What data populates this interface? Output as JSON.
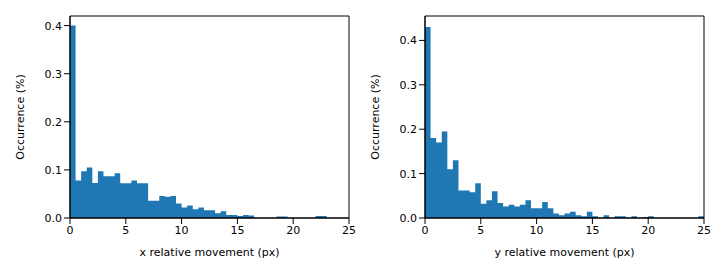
{
  "chart_data": [
    {
      "type": "histogram",
      "xlabel": "x relative movement (px)",
      "ylabel": "Occurrence (%)",
      "color": "#1f77b4",
      "xlim": [
        0,
        25
      ],
      "ylim": [
        0,
        0.42
      ],
      "xticks": [
        0,
        5,
        10,
        15,
        20,
        25
      ],
      "yticks": [
        {
          "value": 0,
          "label": "0.0"
        },
        {
          "value": 0.1,
          "label": "0.1"
        },
        {
          "value": 0.2,
          "label": "0.2"
        },
        {
          "value": 0.3,
          "label": "0.3"
        },
        {
          "value": 0.4,
          "label": "0.4"
        }
      ],
      "bins": [
        0,
        0.5,
        1,
        1.5,
        2,
        2.5,
        3,
        3.5,
        4,
        4.5,
        5,
        5.5,
        6,
        6.5,
        7,
        7.5,
        8,
        8.5,
        9,
        9.5,
        10,
        10.5,
        11,
        11.5,
        12,
        12.5,
        13,
        13.5,
        14,
        14.5,
        15,
        15.5,
        16,
        16.5,
        17,
        17.5,
        18,
        18.5,
        19,
        19.5,
        20,
        20.5,
        21,
        21.5,
        22,
        22.5,
        23,
        23.5,
        24,
        24.5,
        25
      ],
      "counts": [
        0.4,
        0.078,
        0.097,
        0.105,
        0.073,
        0.097,
        0.087,
        0.087,
        0.093,
        0.072,
        0.072,
        0.078,
        0.072,
        0.072,
        0.036,
        0.036,
        0.046,
        0.044,
        0.046,
        0.03,
        0.022,
        0.026,
        0.018,
        0.022,
        0.016,
        0.016,
        0.01,
        0.014,
        0.006,
        0.006,
        0.004,
        0.006,
        0.005,
        0,
        0,
        0,
        0,
        0.003,
        0.003,
        0,
        0,
        0,
        0,
        0,
        0.004,
        0.004,
        0,
        0,
        0,
        0
      ]
    },
    {
      "type": "histogram",
      "xlabel": "y relative movement (px)",
      "ylabel": "Occurrence (%)",
      "color": "#1f77b4",
      "xlim": [
        0,
        25
      ],
      "ylim": [
        0,
        0.455
      ],
      "xticks": [
        0,
        5,
        10,
        15,
        20,
        25
      ],
      "yticks": [
        {
          "value": 0,
          "label": "0.0"
        },
        {
          "value": 0.1,
          "label": "0.1"
        },
        {
          "value": 0.2,
          "label": "0.2"
        },
        {
          "value": 0.3,
          "label": "0.3"
        },
        {
          "value": 0.4,
          "label": "0.4"
        }
      ],
      "bins": [
        0,
        0.5,
        1,
        1.5,
        2,
        2.5,
        3,
        3.5,
        4,
        4.5,
        5,
        5.5,
        6,
        6.5,
        7,
        7.5,
        8,
        8.5,
        9,
        9.5,
        10,
        10.5,
        11,
        11.5,
        12,
        12.5,
        13,
        13.5,
        14,
        14.5,
        15,
        15.5,
        16,
        16.5,
        17,
        17.5,
        18,
        18.5,
        19,
        19.5,
        20,
        20.5,
        21,
        21.5,
        22,
        22.5,
        23,
        23.5,
        24,
        24.5,
        25
      ],
      "counts": [
        0.43,
        0.18,
        0.17,
        0.195,
        0.11,
        0.13,
        0.062,
        0.062,
        0.058,
        0.078,
        0.032,
        0.04,
        0.06,
        0.034,
        0.026,
        0.03,
        0.026,
        0.03,
        0.04,
        0.022,
        0.022,
        0.036,
        0.022,
        0.01,
        0.006,
        0.01,
        0.014,
        0.006,
        0.004,
        0.014,
        0.004,
        0,
        0.006,
        0,
        0.004,
        0.004,
        0,
        0.004,
        0,
        0.002,
        0.004,
        0,
        0,
        0,
        0,
        0,
        0,
        0,
        0,
        0.004
      ]
    }
  ]
}
